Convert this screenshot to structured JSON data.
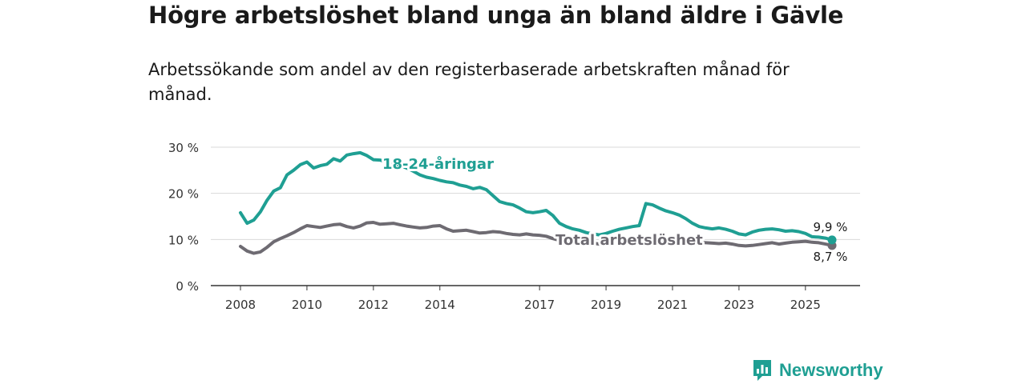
{
  "title": "Högre arbetslöshet bland unga än bland äldre i Gävle",
  "subtitle": "Arbetssökande som andel av den registerbaserade arbetskraften månad för månad.",
  "brand": {
    "name": "Newsworthy",
    "logo_icon": "bar-chart-speech-bubble-icon"
  },
  "chart_data": {
    "type": "line",
    "title": "Högre arbetslöshet bland unga än bland äldre i Gävle",
    "subtitle": "Arbetssökande som andel av den registerbaserade arbetskraften månad för månad.",
    "xlabel": "",
    "ylabel": "",
    "xlim": [
      2008.0,
      2026.7
    ],
    "ylim": [
      0,
      30
    ],
    "grid": true,
    "x_ticks": [
      2008,
      2010,
      2012,
      2014,
      2017,
      2019,
      2021,
      2023,
      2025
    ],
    "x_tick_labels": [
      "2008",
      "2010",
      "2012",
      "2014",
      "2017",
      "2019",
      "2021",
      "2023",
      "2025"
    ],
    "y_ticks": [
      0,
      10,
      20,
      30
    ],
    "y_tick_labels": [
      "0 %",
      "10 %",
      "20 %",
      "30 %"
    ],
    "series": [
      {
        "name": "18-24-åringar",
        "label": "18-24-åringar",
        "color": "#1f9f93",
        "end_label": "9,9 %",
        "end_value": 9.9,
        "x": [
          2008.0,
          2008.2,
          2008.4,
          2008.6,
          2008.8,
          2009.0,
          2009.2,
          2009.4,
          2009.6,
          2009.8,
          2010.0,
          2010.2,
          2010.4,
          2010.6,
          2010.8,
          2011.0,
          2011.2,
          2011.4,
          2011.6,
          2011.8,
          2012.0,
          2012.2,
          2012.4,
          2012.6,
          2012.8,
          2013.0,
          2013.2,
          2013.4,
          2013.6,
          2013.8,
          2014.0,
          2014.2,
          2014.4,
          2014.6,
          2014.8,
          2015.0,
          2015.2,
          2015.4,
          2015.6,
          2015.8,
          2016.0,
          2016.2,
          2016.4,
          2016.6,
          2016.8,
          2017.0,
          2017.2,
          2017.4,
          2017.6,
          2017.8,
          2018.0,
          2018.2,
          2018.4,
          2018.6,
          2018.8,
          2019.0,
          2019.2,
          2019.4,
          2019.6,
          2019.8,
          2020.0,
          2020.2,
          2020.4,
          2020.6,
          2020.8,
          2021.0,
          2021.2,
          2021.4,
          2021.6,
          2021.8,
          2022.0,
          2022.2,
          2022.4,
          2022.6,
          2022.8,
          2023.0,
          2023.2,
          2023.4,
          2023.6,
          2023.8,
          2024.0,
          2024.2,
          2024.4,
          2024.6,
          2024.8,
          2025.0,
          2025.2,
          2025.4,
          2025.6,
          2025.8
        ],
        "values": [
          15.8,
          13.5,
          14.2,
          16.0,
          18.5,
          20.5,
          21.2,
          24.0,
          25.0,
          26.2,
          26.8,
          25.5,
          26.0,
          26.3,
          27.5,
          27.0,
          28.3,
          28.6,
          28.8,
          28.2,
          27.3,
          27.2,
          26.8,
          26.5,
          26.0,
          25.5,
          24.8,
          24.0,
          23.5,
          23.2,
          22.8,
          22.5,
          22.3,
          21.8,
          21.5,
          21.0,
          21.3,
          20.8,
          19.5,
          18.2,
          17.8,
          17.5,
          16.8,
          16.0,
          15.8,
          16.0,
          16.3,
          15.2,
          13.5,
          12.8,
          12.3,
          12.0,
          11.5,
          11.2,
          11.0,
          11.3,
          11.8,
          12.2,
          12.5,
          12.8,
          13.0,
          17.8,
          17.5,
          16.8,
          16.2,
          15.8,
          15.3,
          14.5,
          13.5,
          12.8,
          12.5,
          12.3,
          12.5,
          12.2,
          11.8,
          11.2,
          11.0,
          11.6,
          12.0,
          12.2,
          12.3,
          12.1,
          11.8,
          11.9,
          11.7,
          11.3,
          10.6,
          10.5,
          10.3,
          9.9
        ]
      },
      {
        "name": "Total arbetslöshet",
        "label": "Total arbetslöshet",
        "color": "#6e6b72",
        "end_label": "8,7 %",
        "end_value": 8.7,
        "x": [
          2008.0,
          2008.2,
          2008.4,
          2008.6,
          2008.8,
          2009.0,
          2009.2,
          2009.4,
          2009.6,
          2009.8,
          2010.0,
          2010.2,
          2010.4,
          2010.6,
          2010.8,
          2011.0,
          2011.2,
          2011.4,
          2011.6,
          2011.8,
          2012.0,
          2012.2,
          2012.4,
          2012.6,
          2012.8,
          2013.0,
          2013.2,
          2013.4,
          2013.6,
          2013.8,
          2014.0,
          2014.2,
          2014.4,
          2014.6,
          2014.8,
          2015.0,
          2015.2,
          2015.4,
          2015.6,
          2015.8,
          2016.0,
          2016.2,
          2016.4,
          2016.6,
          2016.8,
          2017.0,
          2017.2,
          2017.4,
          2017.6,
          2017.8,
          2018.0,
          2018.2,
          2018.4,
          2018.6,
          2018.8,
          2019.0,
          2019.2,
          2019.4,
          2019.6,
          2019.8,
          2020.0,
          2020.2,
          2020.4,
          2020.6,
          2020.8,
          2021.0,
          2021.2,
          2021.4,
          2021.6,
          2021.8,
          2022.0,
          2022.2,
          2022.4,
          2022.6,
          2022.8,
          2023.0,
          2023.2,
          2023.4,
          2023.6,
          2023.8,
          2024.0,
          2024.2,
          2024.4,
          2024.6,
          2024.8,
          2025.0,
          2025.2,
          2025.4,
          2025.6,
          2025.8
        ],
        "values": [
          8.5,
          7.5,
          7.0,
          7.3,
          8.3,
          9.5,
          10.2,
          10.8,
          11.5,
          12.3,
          13.0,
          12.8,
          12.6,
          12.9,
          13.2,
          13.3,
          12.8,
          12.5,
          12.9,
          13.6,
          13.7,
          13.3,
          13.4,
          13.5,
          13.2,
          12.9,
          12.7,
          12.5,
          12.6,
          12.9,
          13.0,
          12.3,
          11.8,
          11.9,
          12.0,
          11.7,
          11.4,
          11.5,
          11.7,
          11.6,
          11.3,
          11.1,
          11.0,
          11.2,
          11.0,
          10.9,
          10.7,
          10.2,
          9.8,
          9.6,
          9.5,
          9.6,
          9.4,
          9.2,
          9.0,
          8.9,
          9.2,
          9.3,
          9.5,
          9.7,
          9.8,
          10.0,
          10.1,
          10.0,
          9.9,
          9.8,
          9.7,
          9.6,
          9.5,
          9.4,
          9.3,
          9.2,
          9.1,
          9.2,
          9.0,
          8.7,
          8.6,
          8.7,
          8.9,
          9.1,
          9.3,
          9.0,
          9.2,
          9.4,
          9.5,
          9.6,
          9.4,
          9.3,
          9.0,
          8.7
        ]
      }
    ]
  }
}
